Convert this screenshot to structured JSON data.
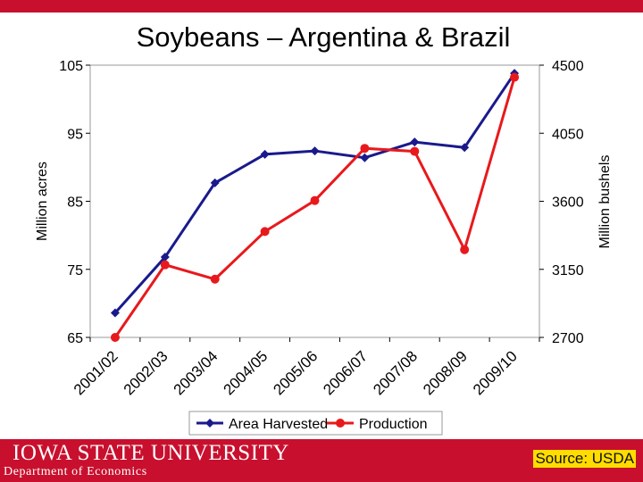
{
  "branding": {
    "logo_text": "Iowa State University",
    "department": "Department of Economics",
    "source": "Source: USDA",
    "accent_color": "#c8102e"
  },
  "chart_data": {
    "type": "line",
    "title": "Soybeans – Argentina & Brazil",
    "categories": [
      "2001/02",
      "2002/03",
      "2003/04",
      "2004/05",
      "2005/06",
      "2006/07",
      "2007/08",
      "2008/09",
      "2009/10"
    ],
    "ylabel": "Million acres",
    "y2label": "Million bushels",
    "ylim": [
      65,
      105
    ],
    "yticks": [
      65,
      75,
      85,
      95,
      105
    ],
    "y2lim": [
      2700,
      4500
    ],
    "y2ticks": [
      2700,
      3150,
      3600,
      4050,
      4500
    ],
    "grid": false,
    "legend": "bottom",
    "series": [
      {
        "name": "Area Harvested",
        "axis": "left",
        "color": "#1a1a8c",
        "marker": "diamond",
        "values": [
          68.6,
          76.8,
          87.7,
          91.9,
          92.4,
          91.4,
          93.7,
          92.9,
          103.8
        ]
      },
      {
        "name": "Production",
        "axis": "right",
        "color": "#e8191c",
        "marker": "circle",
        "values": [
          2700,
          3180,
          3085,
          3400,
          3605,
          3950,
          3930,
          3280,
          4420
        ]
      }
    ]
  }
}
